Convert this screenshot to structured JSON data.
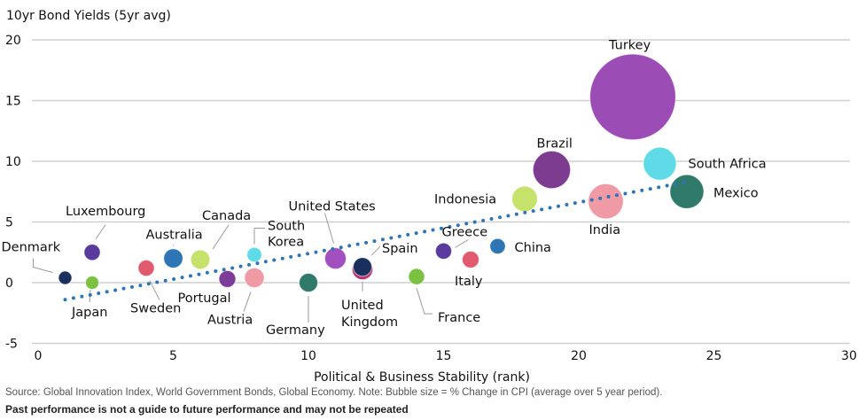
{
  "chart_data": {
    "type": "scatter",
    "subtype": "bubble",
    "title": "",
    "ylabel": "10yr Bond Yields (5yr avg)",
    "xlabel": "Political & Business Stability (rank)",
    "xlim": [
      0,
      30
    ],
    "ylim": [
      -5,
      20
    ],
    "xticks": [
      0,
      5,
      10,
      15,
      20,
      25,
      30
    ],
    "yticks": [
      -5,
      0,
      5,
      10,
      15,
      20
    ],
    "ytick_labels": [
      "-5",
      "0",
      "5",
      "10",
      "15",
      "20"
    ],
    "xtick_labels": [
      "0",
      "5",
      "10",
      "15",
      "20",
      "25",
      "30"
    ],
    "grid": "horizontal",
    "size_meaning": "% Change in CPI (average over 5 year period)",
    "trendline": {
      "style": "dotted",
      "color": "#2e75b6",
      "x": [
        1,
        24
      ],
      "y": [
        -1.4,
        8.3
      ]
    },
    "points": [
      {
        "name": "Denmark",
        "x": 1,
        "y": 0.4,
        "size": 0.7,
        "color": "#1b2f5e"
      },
      {
        "name": "Luxembourg",
        "x": 2,
        "y": 2.5,
        "size": 1.2,
        "color": "#5b3a9e"
      },
      {
        "name": "Japan",
        "x": 2,
        "y": 0.0,
        "size": 0.3,
        "color": "#7cc242"
      },
      {
        "name": "Sweden",
        "x": 4,
        "y": 1.2,
        "size": 1.2,
        "color": "#e0596e"
      },
      {
        "name": "Australia",
        "x": 5,
        "y": 2.0,
        "size": 1.7,
        "color": "#2e75b6"
      },
      {
        "name": "Canada",
        "x": 6,
        "y": 1.9,
        "size": 1.7,
        "color": "#c6e26a"
      },
      {
        "name": "Portugal",
        "x": 7,
        "y": 0.3,
        "size": 1.3,
        "color": "#7d3c98"
      },
      {
        "name": "South Korea",
        "x": 8,
        "y": 2.3,
        "size": 1.0,
        "color": "#5fdbe8"
      },
      {
        "name": "Austria",
        "x": 8,
        "y": 0.4,
        "size": 1.8,
        "color": "#f09aa6"
      },
      {
        "name": "Germany",
        "x": 10,
        "y": 0.0,
        "size": 1.6,
        "color": "#2f7a6b"
      },
      {
        "name": "United States",
        "x": 11,
        "y": 2.0,
        "size": 2.1,
        "color": "#a24fc0"
      },
      {
        "name": "Spain",
        "x": 12,
        "y": 1.3,
        "size": 1.6,
        "color": "#1b2f5e"
      },
      {
        "name": "United Kingdom",
        "x": 12,
        "y": 1.1,
        "size": 2.0,
        "color": "#b8336a"
      },
      {
        "name": "France",
        "x": 14,
        "y": 0.5,
        "size": 1.2,
        "color": "#7cc242"
      },
      {
        "name": "Greece",
        "x": 15,
        "y": 2.6,
        "size": 1.2,
        "color": "#5b3a9e"
      },
      {
        "name": "Italy",
        "x": 16,
        "y": 1.9,
        "size": 1.3,
        "color": "#e0596e"
      },
      {
        "name": "China",
        "x": 17,
        "y": 3.0,
        "size": 1.1,
        "color": "#2e75b6"
      },
      {
        "name": "Indonesia",
        "x": 18,
        "y": 6.9,
        "size": 3.0,
        "color": "#c6e26a"
      },
      {
        "name": "Brazil",
        "x": 19,
        "y": 9.3,
        "size": 6.5,
        "color": "#7d3c8f"
      },
      {
        "name": "India",
        "x": 21,
        "y": 6.7,
        "size": 5.7,
        "color": "#f09aa6"
      },
      {
        "name": "Turkey",
        "x": 22,
        "y": 15.3,
        "size": 34.0,
        "color": "#9b4db5"
      },
      {
        "name": "South Africa",
        "x": 23,
        "y": 9.8,
        "size": 5.0,
        "color": "#5fdbe8"
      },
      {
        "name": "Mexico",
        "x": 24,
        "y": 7.5,
        "size": 5.3,
        "color": "#2f7a6b"
      }
    ]
  },
  "footer": {
    "source": "Source: Global Innovation Index, World Government Bonds, Global Economy. Note: Bubble size = % Change in CPI (average over 5 year period).",
    "disclaimer": "Past performance is not a guide to future performance and may not be repeated"
  }
}
